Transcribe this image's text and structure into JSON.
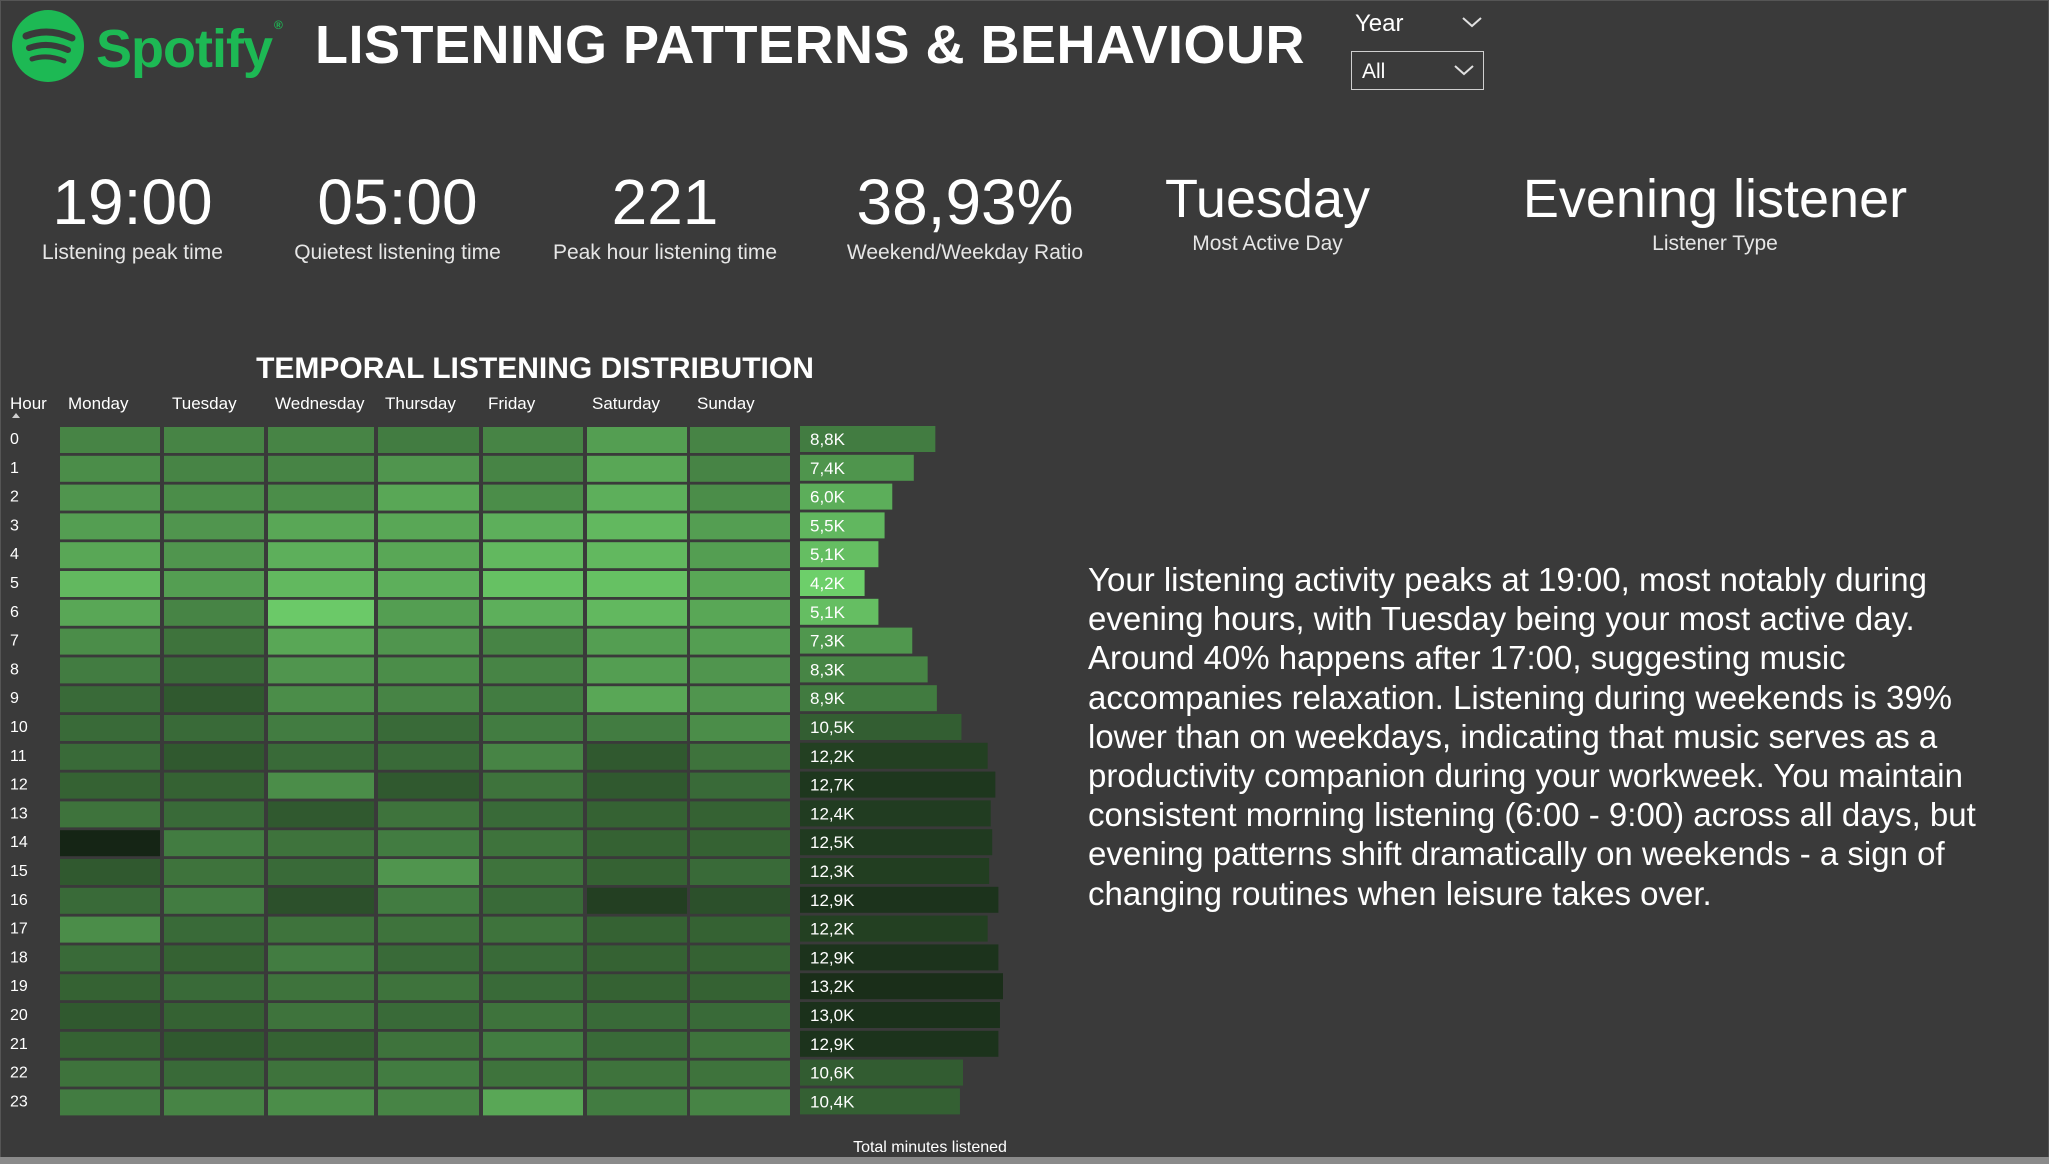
{
  "brand": {
    "name": "Spotify",
    "mark": "®"
  },
  "title": "LISTENING PATTERNS & BEHAVIOUR",
  "filter": {
    "label": "Year",
    "value": "All"
  },
  "kpis": [
    {
      "value": "19:00",
      "label": "Listening peak time"
    },
    {
      "value": "05:00",
      "label": "Quietest listening time"
    },
    {
      "value": "221",
      "label": "Peak hour listening time"
    },
    {
      "value": "38,93%",
      "label": "Weekend/Weekday Ratio"
    },
    {
      "value": "Tuesday",
      "label": "Most Active Day"
    },
    {
      "value": "Evening listener",
      "label": "Listener Type"
    }
  ],
  "colors": {
    "background": "#3a3a3a",
    "brand": "#1DB954",
    "cell_light": "#6fd26c",
    "cell_dark": "#152515"
  },
  "insight": "Your listening activity peaks at 19:00, most notably during evening hours, with Tuesday being your most active day. Around 40% happens after 17:00, suggesting music accompanies relaxation. Listening during weekends is 39% lower than on weekdays, indicating that music serves as a productivity companion during your workweek. You maintain consistent morning listening (6:00 - 9:00) across all days, but evening patterns shift dramatically on weekends - a sign of changing routines when leisure takes over.",
  "chart_data": {
    "type": "heatmap",
    "title": "TEMPORAL LISTENING DISTRIBUTION",
    "row_header": "Hour",
    "columns": [
      "Monday",
      "Tuesday",
      "Wednesday",
      "Thursday",
      "Friday",
      "Saturday",
      "Sunday"
    ],
    "rows": [
      "0",
      "1",
      "2",
      "3",
      "4",
      "5",
      "6",
      "7",
      "8",
      "9",
      "10",
      "11",
      "12",
      "13",
      "14",
      "15",
      "16",
      "17",
      "18",
      "19",
      "20",
      "21",
      "22",
      "23"
    ],
    "intensity": [
      [
        0.55,
        0.55,
        0.55,
        0.5,
        0.55,
        0.7,
        0.55
      ],
      [
        0.6,
        0.55,
        0.55,
        0.65,
        0.55,
        0.75,
        0.55
      ],
      [
        0.65,
        0.6,
        0.6,
        0.75,
        0.6,
        0.8,
        0.6
      ],
      [
        0.7,
        0.65,
        0.75,
        0.75,
        0.8,
        0.85,
        0.7
      ],
      [
        0.75,
        0.65,
        0.8,
        0.75,
        0.85,
        0.85,
        0.7
      ],
      [
        0.85,
        0.7,
        0.85,
        0.8,
        0.9,
        0.9,
        0.75
      ],
      [
        0.75,
        0.55,
        0.95,
        0.7,
        0.8,
        0.85,
        0.75
      ],
      [
        0.6,
        0.45,
        0.75,
        0.65,
        0.55,
        0.7,
        0.7
      ],
      [
        0.5,
        0.4,
        0.65,
        0.6,
        0.55,
        0.7,
        0.65
      ],
      [
        0.4,
        0.3,
        0.6,
        0.55,
        0.5,
        0.75,
        0.65
      ],
      [
        0.4,
        0.4,
        0.5,
        0.4,
        0.5,
        0.5,
        0.6
      ],
      [
        0.4,
        0.3,
        0.4,
        0.4,
        0.55,
        0.3,
        0.45
      ],
      [
        0.35,
        0.35,
        0.6,
        0.3,
        0.45,
        0.3,
        0.4
      ],
      [
        0.45,
        0.4,
        0.3,
        0.45,
        0.4,
        0.35,
        0.35
      ],
      [
        0.0,
        0.5,
        0.45,
        0.5,
        0.45,
        0.35,
        0.35
      ],
      [
        0.3,
        0.45,
        0.4,
        0.65,
        0.45,
        0.35,
        0.4
      ],
      [
        0.4,
        0.5,
        0.25,
        0.5,
        0.4,
        0.15,
        0.25
      ],
      [
        0.6,
        0.4,
        0.45,
        0.45,
        0.45,
        0.35,
        0.35
      ],
      [
        0.4,
        0.35,
        0.5,
        0.4,
        0.4,
        0.35,
        0.35
      ],
      [
        0.35,
        0.4,
        0.45,
        0.45,
        0.4,
        0.35,
        0.35
      ],
      [
        0.3,
        0.35,
        0.45,
        0.4,
        0.45,
        0.4,
        0.4
      ],
      [
        0.35,
        0.3,
        0.35,
        0.45,
        0.5,
        0.4,
        0.45
      ],
      [
        0.45,
        0.4,
        0.45,
        0.5,
        0.45,
        0.45,
        0.45
      ],
      [
        0.5,
        0.55,
        0.6,
        0.55,
        0.75,
        0.5,
        0.55
      ]
    ],
    "totals": {
      "label": "Total minutes listened",
      "values": [
        8800,
        7400,
        6000,
        5500,
        5100,
        4200,
        5100,
        7300,
        8300,
        8900,
        10500,
        12200,
        12700,
        12400,
        12500,
        12300,
        12900,
        12200,
        12900,
        13200,
        13000,
        12900,
        10600,
        10400
      ],
      "labels": [
        "8,8K",
        "7,4K",
        "6,0K",
        "5,5K",
        "5,1K",
        "4,2K",
        "5,1K",
        "7,3K",
        "8,3K",
        "8,9K",
        "10,5K",
        "12,2K",
        "12,7K",
        "12,4K",
        "12,5K",
        "12,3K",
        "12,9K",
        "12,2K",
        "12,9K",
        "13,2K",
        "13,0K",
        "12,9K",
        "10,6K",
        "10,4K"
      ],
      "xlim": [
        0,
        13200
      ]
    },
    "grid": false,
    "legend": "none"
  }
}
